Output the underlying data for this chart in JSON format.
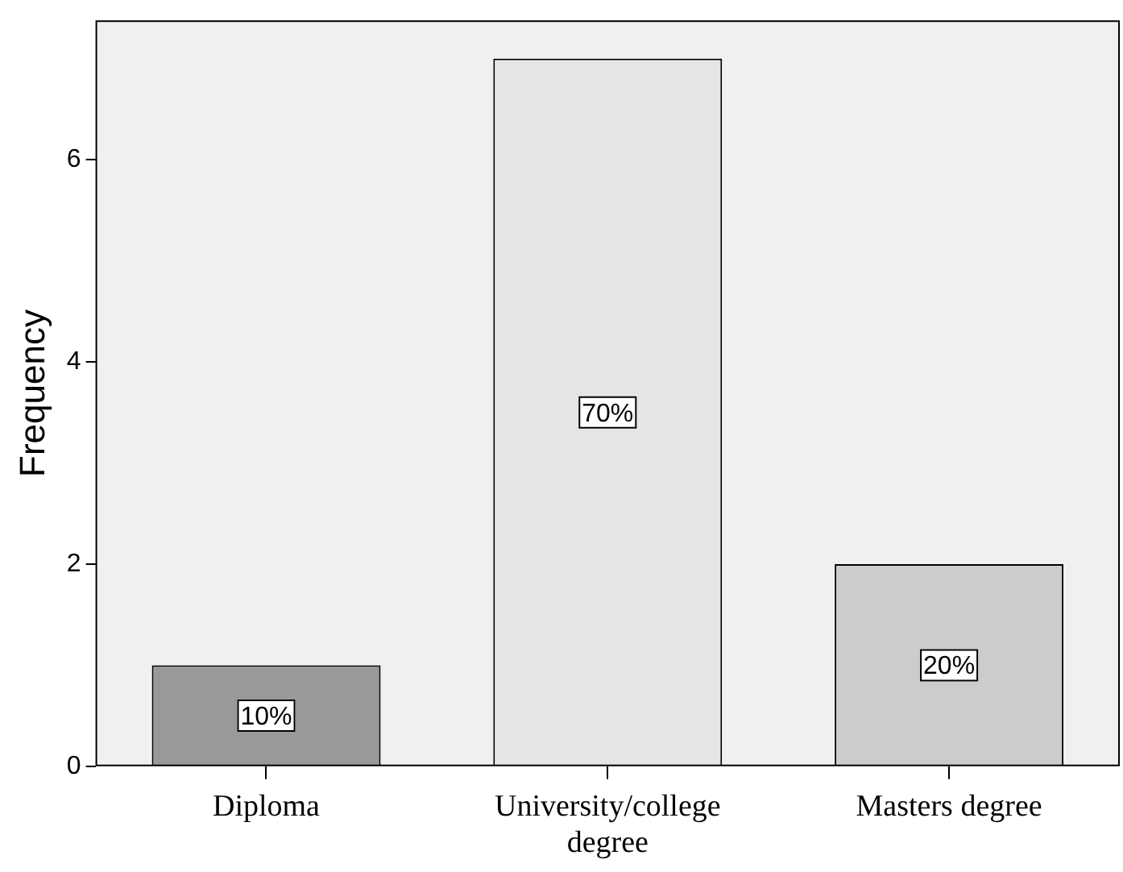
{
  "chart_data": {
    "type": "bar",
    "ylabel": "Frequency",
    "categories": [
      "Diploma",
      "University/college degree",
      "Masters degree"
    ],
    "values": [
      1,
      7,
      2
    ],
    "colors": [
      "#999999",
      "#e5e5e5",
      "#cccccc"
    ],
    "annotations": [
      {
        "text": "10%",
        "x": "Diploma",
        "y": 0.5
      },
      {
        "text": "70%",
        "x": "University/college degree",
        "y": 3.5
      },
      {
        "text": "20%",
        "x": "Masters degree",
        "y": 1
      }
    ],
    "ylim": [
      0,
      7.38
    ],
    "yticks": [
      0,
      2,
      4,
      6
    ],
    "grid": false,
    "legend": false
  }
}
